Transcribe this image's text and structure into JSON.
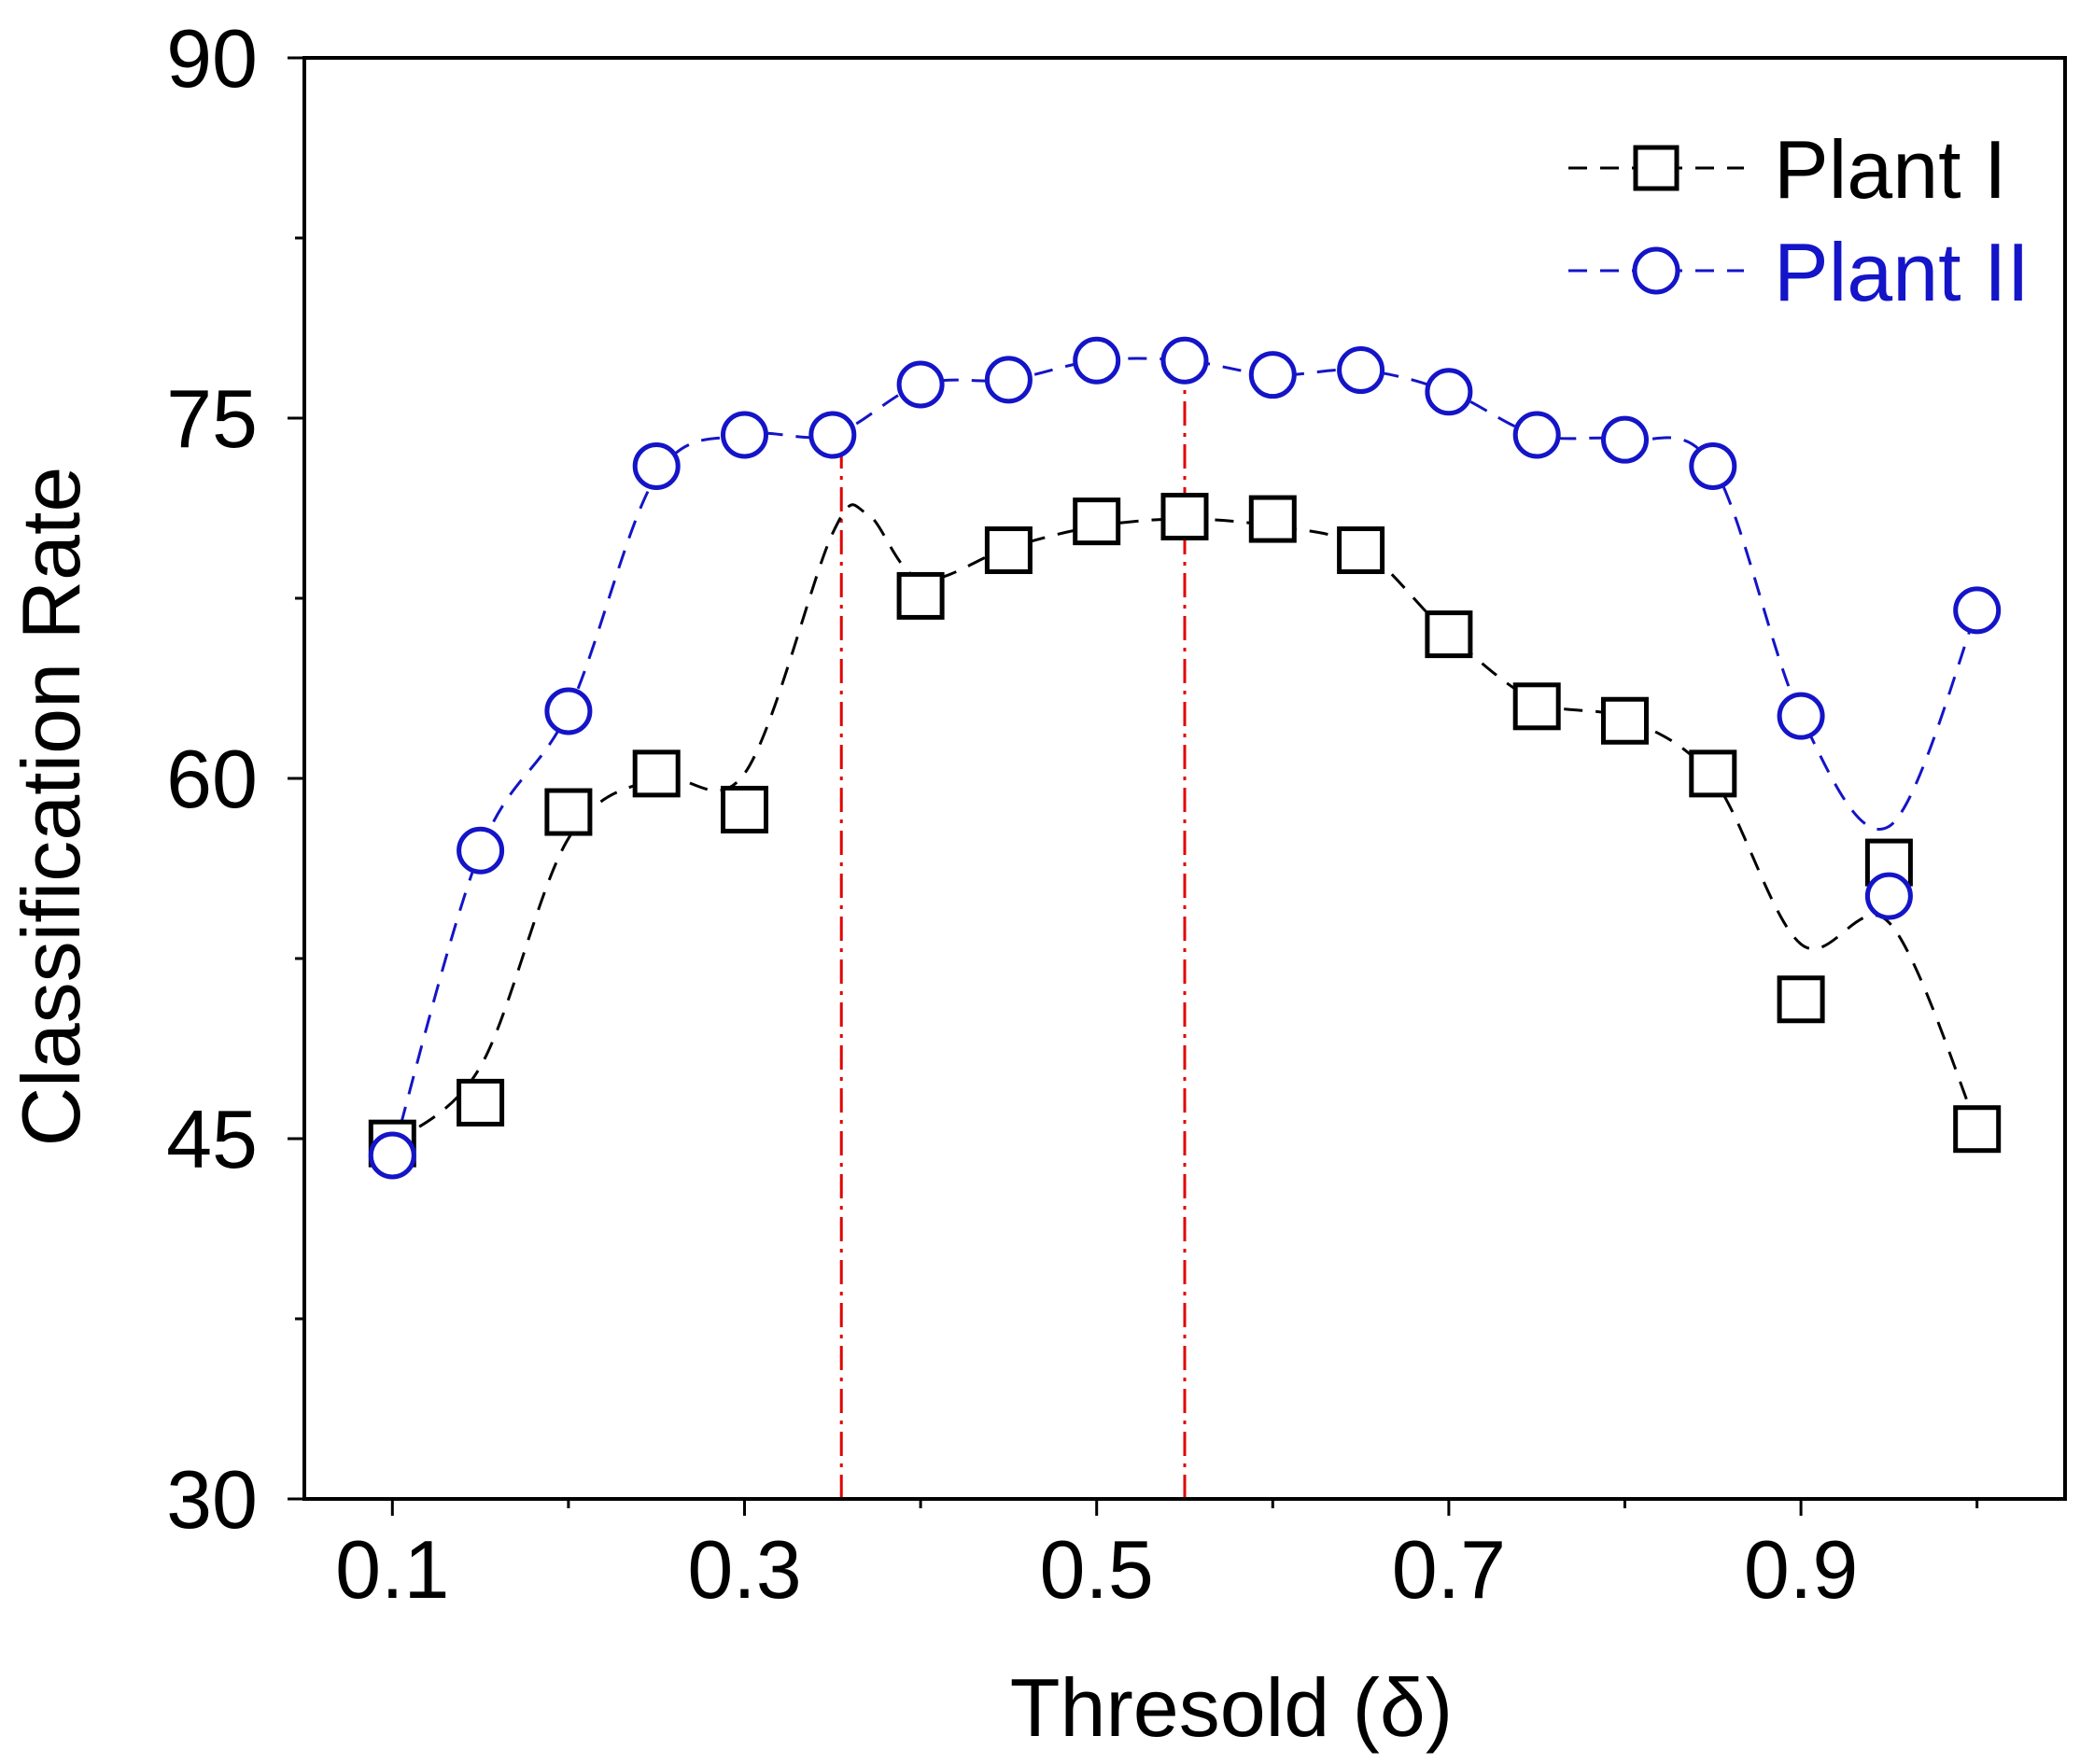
{
  "chart_data": {
    "type": "line",
    "title": "",
    "xlabel": "Thresold (δ)",
    "ylabel": "Classification Rate",
    "xlim": [
      0.05,
      1.05
    ],
    "ylim": [
      30,
      90
    ],
    "x_ticks": [
      {
        "value": 0.1,
        "label": "0.1"
      },
      {
        "value": 0.3,
        "label": "0.3"
      },
      {
        "value": 0.5,
        "label": "0.5"
      },
      {
        "value": 0.7,
        "label": "0.7"
      },
      {
        "value": 0.9,
        "label": "0.9"
      }
    ],
    "x_minor_ticks": [
      0.2,
      0.4,
      0.6,
      0.8,
      1.0
    ],
    "y_ticks": [
      {
        "value": 30,
        "label": "30"
      },
      {
        "value": 45,
        "label": "45"
      },
      {
        "value": 60,
        "label": "60"
      },
      {
        "value": 75,
        "label": "75"
      },
      {
        "value": 90,
        "label": "90"
      }
    ],
    "y_minor_ticks": [
      37.5,
      52.5,
      67.5,
      82.5
    ],
    "grid": false,
    "legend_position": "top-right",
    "x": [
      0.1,
      0.15,
      0.2,
      0.25,
      0.3,
      0.35,
      0.4,
      0.45,
      0.5,
      0.55,
      0.6,
      0.65,
      0.7,
      0.75,
      0.8,
      0.85,
      0.9,
      0.95,
      1.0
    ],
    "series": [
      {
        "name": "Plant I",
        "color": "#000000",
        "marker": "square",
        "curve": [
          [
            0.1,
            44.8
          ],
          [
            0.15,
            48
          ],
          [
            0.2,
            57.5
          ],
          [
            0.25,
            60
          ],
          [
            0.3,
            60.2
          ],
          [
            0.35,
            70.2
          ],
          [
            0.37,
            71
          ],
          [
            0.4,
            68.3
          ],
          [
            0.45,
            69.6
          ],
          [
            0.5,
            70.5
          ],
          [
            0.55,
            70.8
          ],
          [
            0.6,
            70.5
          ],
          [
            0.65,
            69.6
          ],
          [
            0.7,
            66
          ],
          [
            0.75,
            63.2
          ],
          [
            0.8,
            62.5
          ],
          [
            0.85,
            60
          ],
          [
            0.9,
            53.1
          ],
          [
            0.95,
            54
          ],
          [
            1.0,
            45.5
          ]
        ],
        "points": [
          {
            "x": 0.1,
            "y": 44.8,
            "shown": true
          },
          {
            "x": 0.15,
            "y": 46.5,
            "shown": true
          },
          {
            "x": 0.2,
            "y": 58.6,
            "shown": true
          },
          {
            "x": 0.25,
            "y": 60.2,
            "shown": true
          },
          {
            "x": 0.3,
            "y": 58.7,
            "shown": true
          },
          {
            "x": 0.35,
            "y": 70.9,
            "shown": false
          },
          {
            "x": 0.4,
            "y": 67.6,
            "shown": true
          },
          {
            "x": 0.45,
            "y": 69.5,
            "shown": true
          },
          {
            "x": 0.5,
            "y": 70.7,
            "shown": true
          },
          {
            "x": 0.55,
            "y": 70.9,
            "shown": true
          },
          {
            "x": 0.6,
            "y": 70.8,
            "shown": true
          },
          {
            "x": 0.65,
            "y": 69.5,
            "shown": true
          },
          {
            "x": 0.7,
            "y": 66.0,
            "shown": true
          },
          {
            "x": 0.75,
            "y": 63.0,
            "shown": true
          },
          {
            "x": 0.8,
            "y": 62.4,
            "shown": true
          },
          {
            "x": 0.85,
            "y": 60.2,
            "shown": true
          },
          {
            "x": 0.9,
            "y": 50.8,
            "shown": true
          },
          {
            "x": 0.95,
            "y": 56.5,
            "shown": true
          },
          {
            "x": 1.0,
            "y": 45.4,
            "shown": true
          }
        ]
      },
      {
        "name": "Plant II",
        "color": "#1414c8",
        "marker": "circle",
        "curve": [
          [
            0.1,
            44.3
          ],
          [
            0.15,
            57
          ],
          [
            0.2,
            62.8
          ],
          [
            0.25,
            72.6
          ],
          [
            0.3,
            74.3
          ],
          [
            0.35,
            74.3
          ],
          [
            0.4,
            76.4
          ],
          [
            0.45,
            76.6
          ],
          [
            0.5,
            77.4
          ],
          [
            0.55,
            77.4
          ],
          [
            0.6,
            76.8
          ],
          [
            0.65,
            77.0
          ],
          [
            0.7,
            76.1
          ],
          [
            0.75,
            74.3
          ],
          [
            0.8,
            74.1
          ],
          [
            0.85,
            73.0
          ],
          [
            0.9,
            62.6
          ],
          [
            0.95,
            58
          ],
          [
            1.0,
            67
          ]
        ],
        "points": [
          {
            "x": 0.1,
            "y": 44.3,
            "shown": true
          },
          {
            "x": 0.15,
            "y": 57.0,
            "shown": true
          },
          {
            "x": 0.2,
            "y": 62.8,
            "shown": true
          },
          {
            "x": 0.25,
            "y": 73.0,
            "shown": true
          },
          {
            "x": 0.3,
            "y": 74.3,
            "shown": true
          },
          {
            "x": 0.35,
            "y": 74.3,
            "shown": true
          },
          {
            "x": 0.4,
            "y": 76.4,
            "shown": true
          },
          {
            "x": 0.45,
            "y": 76.6,
            "shown": true
          },
          {
            "x": 0.5,
            "y": 77.4,
            "shown": true
          },
          {
            "x": 0.55,
            "y": 77.4,
            "shown": true
          },
          {
            "x": 0.6,
            "y": 76.8,
            "shown": true
          },
          {
            "x": 0.65,
            "y": 77.0,
            "shown": true
          },
          {
            "x": 0.7,
            "y": 76.1,
            "shown": true
          },
          {
            "x": 0.75,
            "y": 74.3,
            "shown": true
          },
          {
            "x": 0.8,
            "y": 74.1,
            "shown": true
          },
          {
            "x": 0.85,
            "y": 73.0,
            "shown": true
          },
          {
            "x": 0.9,
            "y": 62.6,
            "shown": true
          },
          {
            "x": 0.95,
            "y": 55.1,
            "shown": true
          },
          {
            "x": 1.0,
            "y": 67.0,
            "shown": true
          }
        ]
      }
    ],
    "reference_lines": [
      {
        "x": 0.355,
        "y_from": 30,
        "y_to": 74.3,
        "color": "#e00000",
        "style": "dash-dot"
      },
      {
        "x": 0.55,
        "y_from": 30,
        "y_to": 77.4,
        "color": "#e00000",
        "style": "dash-dot"
      }
    ]
  }
}
